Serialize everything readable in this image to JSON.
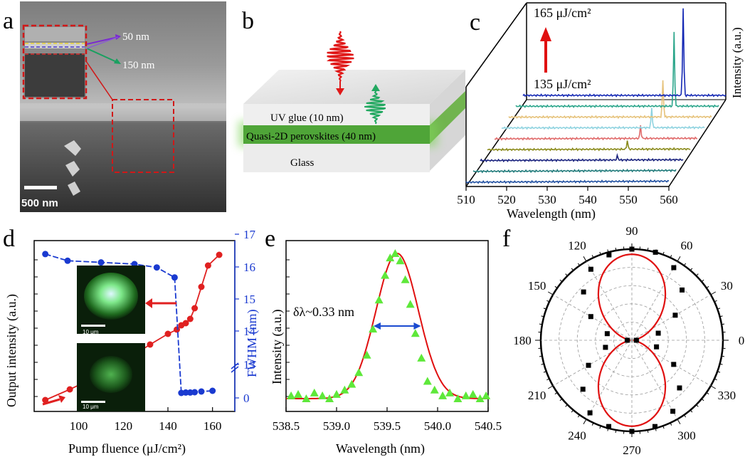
{
  "panel_labels": [
    "a",
    "b",
    "c",
    "d",
    "e",
    "f"
  ],
  "panel_a": {
    "inset_annotations": [
      "50 nm",
      "150 nm"
    ],
    "scale_bar": "500 nm"
  },
  "panel_b": {
    "layers": [
      "UV glue (10 nm)",
      "Quasi-2D perovskites (40 nm)",
      "Glass"
    ]
  },
  "panel_c": {
    "fluence_high": "165 μJ/cm²",
    "fluence_low": "135 μJ/cm²",
    "colors": [
      "#1428b4",
      "#2aa58a",
      "#e6c27a",
      "#8fd3e0",
      "#e06a6a",
      "#8a8a1a",
      "#1a237e",
      "#1f7a7a",
      "#1f4fa0"
    ]
  },
  "panel_d_photo_scale": "10 μm",
  "chart_data": [
    {
      "type": "line",
      "panel": "c",
      "xlabel": "Wavelength (nm)",
      "ylabel": "Intensity (a.u.)",
      "xlim": [
        510,
        560
      ],
      "xticks": [
        510,
        520,
        530,
        540,
        550,
        560
      ],
      "series_peaks_nm": [
        null,
        543.5,
        543.8,
        544.5,
        546.0,
        547.0,
        548.0,
        549.0,
        549.5
      ]
    },
    {
      "type": "line",
      "panel": "d",
      "xlabel": "Pump fluence (μJ/cm²)",
      "ylabel": "Output intensity (a.u.)",
      "ylabel_right": "FWHM (nm)",
      "xlim": [
        80,
        170
      ],
      "xticks": [
        100,
        120,
        140,
        160
      ],
      "right_ticks": [
        "0",
        "13",
        "14",
        "15",
        "16",
        "17"
      ],
      "series": [
        {
          "name": "Output intensity",
          "color": "#e02020",
          "x": [
            85,
            96,
            108,
            120,
            132,
            140,
            144,
            146,
            148,
            150,
            152,
            155,
            158,
            163
          ],
          "y": [
            0.02,
            0.07,
            0.13,
            0.2,
            0.28,
            0.33,
            0.35,
            0.37,
            0.38,
            0.4,
            0.45,
            0.55,
            0.65,
            0.7
          ]
        },
        {
          "name": "FWHM",
          "color": "#1a3ad0",
          "x": [
            85,
            95,
            110,
            125,
            135,
            143,
            146,
            148,
            150,
            152,
            155,
            160
          ],
          "y": [
            16.3,
            16.1,
            16.05,
            16.0,
            15.9,
            15.6,
            0.35,
            0.38,
            0.38,
            0.4,
            0.45,
            0.5
          ]
        }
      ]
    },
    {
      "type": "scatter",
      "panel": "e",
      "xlabel": "Wavelength (nm)",
      "ylabel": "Intensity (a.u.)",
      "xlim": [
        538.5,
        540.5
      ],
      "xticks": [
        "538.5",
        "539.0",
        "539.5",
        "540.0",
        "540.5"
      ],
      "annotation": "δλ~0.33 nm",
      "fit_center": 539.6,
      "fit_fwhm": 0.33,
      "x": [
        538.55,
        538.62,
        538.7,
        538.78,
        538.86,
        538.93,
        539.0,
        539.08,
        539.15,
        539.22,
        539.3,
        539.36,
        539.42,
        539.48,
        539.53,
        539.58,
        539.63,
        539.68,
        539.73,
        539.78,
        539.84,
        539.9,
        539.97,
        540.05,
        540.12,
        540.2,
        540.28,
        540.35,
        540.42,
        540.48
      ],
      "y": [
        0.02,
        0.03,
        0.0,
        0.04,
        0.02,
        0.0,
        0.03,
        0.06,
        0.1,
        0.18,
        0.3,
        0.48,
        0.68,
        0.85,
        0.97,
        1.0,
        0.95,
        0.82,
        0.65,
        0.45,
        0.28,
        0.12,
        0.06,
        0.02,
        0.04,
        0.0,
        0.02,
        0.03,
        0.0,
        0.02
      ]
    },
    {
      "type": "scatter",
      "panel": "f",
      "polar": true,
      "angle_labels": [
        "0",
        "30",
        "60",
        "90",
        "120",
        "150",
        "180",
        "210",
        "240",
        "270",
        "300",
        "330"
      ],
      "angles": [
        0,
        15,
        30,
        45,
        60,
        75,
        90,
        105,
        120,
        135,
        150,
        165,
        180,
        195,
        210,
        225,
        240,
        255,
        270,
        285,
        300,
        315,
        330,
        345
      ],
      "values": [
        0.05,
        0.3,
        0.55,
        0.78,
        0.92,
        1.0,
        1.0,
        0.97,
        0.9,
        0.75,
        0.52,
        0.28,
        0.05,
        0.3,
        0.55,
        0.76,
        0.92,
        0.98,
        1.0,
        0.98,
        0.9,
        0.74,
        0.53,
        0.28
      ]
    }
  ]
}
